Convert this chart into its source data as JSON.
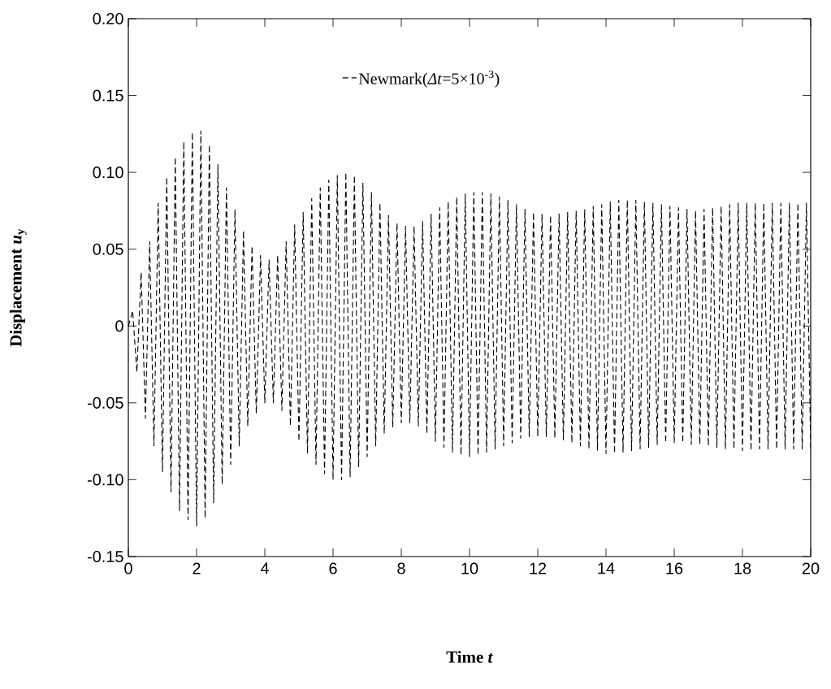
{
  "chart_data": {
    "type": "line",
    "xlabel": "Time *t*",
    "ylabel": "Displacement *u*$_{y}$",
    "xlim": [
      0,
      20
    ],
    "ylim": [
      -0.15,
      0.2
    ],
    "xticks": [
      0,
      2,
      4,
      6,
      8,
      10,
      12,
      14,
      16,
      18,
      20
    ],
    "yticks": [
      {
        "value": -0.15,
        "label": "-0.15"
      },
      {
        "value": -0.1,
        "label": "-0.10"
      },
      {
        "value": -0.05,
        "label": "-0.05"
      },
      {
        "value": 0,
        "label": "0"
      },
      {
        "value": 0.05,
        "label": "0.05"
      },
      {
        "value": 0.1,
        "label": "0.10"
      },
      {
        "value": 0.15,
        "label": "0.15"
      },
      {
        "value": 0.2,
        "label": "0.20"
      }
    ],
    "grid": false,
    "legend": "top",
    "marker": "none",
    "line_style": "dashed",
    "series": [
      {
        "name": "Newmark(*Δt*=5×10$^{-3}$)",
        "color": "#000000",
        "x": [
          0,
          0.125,
          0.25,
          0.375,
          0.5,
          0.625,
          0.75,
          0.875,
          1,
          1.125,
          1.25,
          1.375,
          1.5,
          1.625,
          1.75,
          1.875,
          2,
          2.125,
          2.25,
          2.375,
          2.5,
          2.625,
          2.75,
          2.875,
          3,
          3.125,
          3.25,
          3.375,
          3.5,
          3.625,
          3.75,
          3.875,
          4,
          4.125,
          4.25,
          4.375,
          4.5,
          4.625,
          4.75,
          4.875,
          5,
          5.125,
          5.25,
          5.375,
          5.5,
          5.625,
          5.75,
          5.875,
          6,
          6.125,
          6.25,
          6.375,
          6.5,
          6.625,
          6.75,
          6.875,
          7,
          7.125,
          7.25,
          7.375,
          7.5,
          7.625,
          7.75,
          7.875,
          8,
          8.125,
          8.25,
          8.375,
          8.5,
          8.625,
          8.75,
          8.875,
          9,
          9.125,
          9.25,
          9.375,
          9.5,
          9.625,
          9.75,
          9.875,
          10,
          10.125,
          10.25,
          10.375,
          10.5,
          10.625,
          10.75,
          10.875,
          11,
          11.125,
          11.25,
          11.375,
          11.5,
          11.625,
          11.75,
          11.875,
          12,
          12.125,
          12.25,
          12.375,
          12.5,
          12.625,
          12.75,
          12.875,
          13,
          13.125,
          13.25,
          13.375,
          13.5,
          13.625,
          13.75,
          13.875,
          14,
          14.125,
          14.25,
          14.375,
          14.5,
          14.625,
          14.75,
          14.875,
          15,
          15.125,
          15.25,
          15.375,
          15.5,
          15.625,
          15.75,
          15.875,
          16,
          16.125,
          16.25,
          16.375,
          16.5,
          16.625,
          16.75,
          16.875,
          17,
          17.125,
          17.25,
          17.375,
          17.5,
          17.625,
          17.75,
          17.875,
          18,
          18.125,
          18.25,
          18.375,
          18.5,
          18.625,
          18.75,
          18.875,
          19,
          19.125,
          19.25,
          19.375,
          19.5,
          19.625,
          19.75,
          19.875,
          20
        ],
        "values": [
          0,
          0.01,
          -0.03,
          0.035,
          -0.06,
          0.055,
          -0.078,
          0.08,
          -0.095,
          0.097,
          -0.108,
          0.11,
          -0.12,
          0.12,
          -0.126,
          0.126,
          -0.13,
          0.127,
          -0.125,
          0.118,
          -0.115,
          0.105,
          -0.103,
          0.09,
          -0.09,
          0.076,
          -0.078,
          0.062,
          -0.065,
          0.052,
          -0.057,
          0.046,
          -0.05,
          0.043,
          -0.05,
          0.046,
          -0.055,
          0.055,
          -0.065,
          0.066,
          -0.075,
          0.074,
          -0.083,
          0.083,
          -0.09,
          0.09,
          -0.096,
          0.095,
          -0.1,
          0.098,
          -0.1,
          0.1,
          -0.098,
          0.098,
          -0.092,
          0.093,
          -0.085,
          0.087,
          -0.078,
          0.08,
          -0.07,
          0.072,
          -0.066,
          0.067,
          -0.063,
          0.065,
          -0.063,
          0.065,
          -0.065,
          0.068,
          -0.07,
          0.073,
          -0.075,
          0.077,
          -0.079,
          0.081,
          -0.082,
          0.084,
          -0.084,
          0.086,
          -0.085,
          0.087,
          -0.084,
          0.087,
          -0.082,
          0.086,
          -0.08,
          0.084,
          -0.078,
          0.082,
          -0.076,
          0.079,
          -0.073,
          0.076,
          -0.072,
          0.074,
          -0.072,
          0.073,
          -0.072,
          0.072,
          -0.073,
          0.073,
          -0.074,
          0.074,
          -0.076,
          0.075,
          -0.078,
          0.076,
          -0.08,
          0.078,
          -0.081,
          0.079,
          -0.083,
          0.081,
          -0.083,
          0.082,
          -0.082,
          0.082,
          -0.081,
          0.082,
          -0.08,
          0.081,
          -0.079,
          0.08,
          -0.077,
          0.079,
          -0.076,
          0.078,
          -0.076,
          0.077,
          -0.076,
          0.076,
          -0.077,
          0.075,
          -0.077,
          0.076,
          -0.078,
          0.077,
          -0.079,
          0.078,
          -0.08,
          0.079,
          -0.08,
          0.08,
          -0.081,
          0.08,
          -0.081,
          0.08,
          -0.08,
          0.08,
          -0.08,
          0.08,
          -0.08,
          0.08,
          -0.08,
          0.08,
          -0.08,
          0.08,
          -0.08,
          0.08,
          -0.08
        ]
      }
    ]
  }
}
